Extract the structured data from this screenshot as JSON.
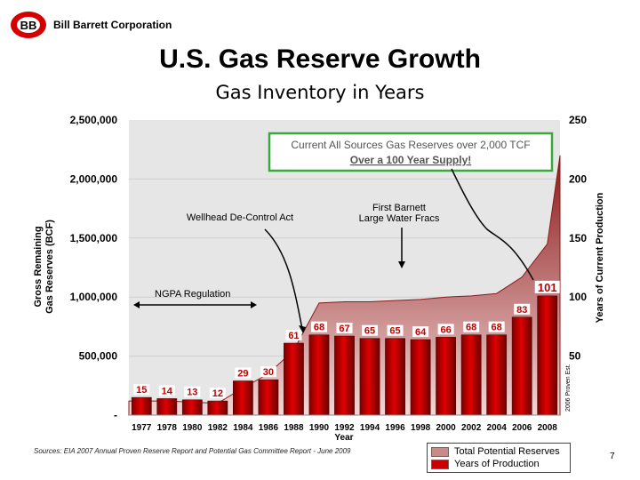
{
  "header": {
    "company": "Bill Barrett Corporation",
    "logo_letters": "BB"
  },
  "title": "U.S. Gas Reserve Growth",
  "subtitle": "Gas Inventory in Years",
  "chart_data": {
    "type": "bar",
    "categories": [
      "1977",
      "1978",
      "1980",
      "1982",
      "1984",
      "1986",
      "1988",
      "1990",
      "1992",
      "1994",
      "1996",
      "1998",
      "2000",
      "2002",
      "2004",
      "2006",
      "2008"
    ],
    "series": [
      {
        "name": "Years of Production",
        "values": [
          15,
          14,
          13,
          12,
          29,
          30,
          61,
          68,
          67,
          65,
          65,
          64,
          66,
          68,
          68,
          83,
          101
        ]
      }
    ],
    "area_series": {
      "name": "Total Potential Reserves",
      "values": [
        12,
        12,
        11,
        10,
        23,
        35,
        55,
        95,
        96,
        96,
        97,
        98,
        100,
        101,
        103,
        117,
        145
      ],
      "end_value": 220
    },
    "data_labels": [
      "15",
      "14",
      "13",
      "12",
      "29",
      "30",
      "61",
      "68",
      "67",
      "65",
      "65",
      "64",
      "66",
      "68",
      "68",
      "83",
      "101"
    ],
    "xlabel": "Year",
    "y_left_label": [
      "Gross Remaining",
      "Gas Reserves (BCF)"
    ],
    "y_right_label": "Years of Current Production",
    "y_left_ticks": [
      "2,500,000",
      "2,000,000",
      "1,500,000",
      "1,000,000",
      "500,000",
      "-"
    ],
    "y_right_ticks": [
      "250",
      "200",
      "150",
      "100",
      "50"
    ],
    "ylim": [
      0,
      250
    ],
    "annotations": {
      "callout_line1": "Current All Sources Gas Reserves over 2,000 TCF",
      "callout_line2": "Over a 100 Year Supply!",
      "wellhead": "Wellhead De-Control Act",
      "barnett_line1": "First Barnett",
      "barnett_line2": "Large Water Fracs",
      "ngpa": "NGPA Regulation",
      "proven_est": "2006 Proven Est."
    },
    "colors": {
      "bar": "#c80000",
      "area_top": "#8b1a1a",
      "area_bottom": "#f2d2d2",
      "plot_bg": "#e6e6e6",
      "callout_border": "#3aa83a"
    }
  },
  "legend": {
    "items": [
      {
        "label": "Total Potential Reserves",
        "color": "#c98a8a"
      },
      {
        "label": "Years of Production",
        "color": "#c80000"
      }
    ]
  },
  "footer": {
    "source": "Sources: EIA 2007 Annual Proven Reserve Report and Potential Gas Committee Report - June 2009",
    "page": "7"
  }
}
